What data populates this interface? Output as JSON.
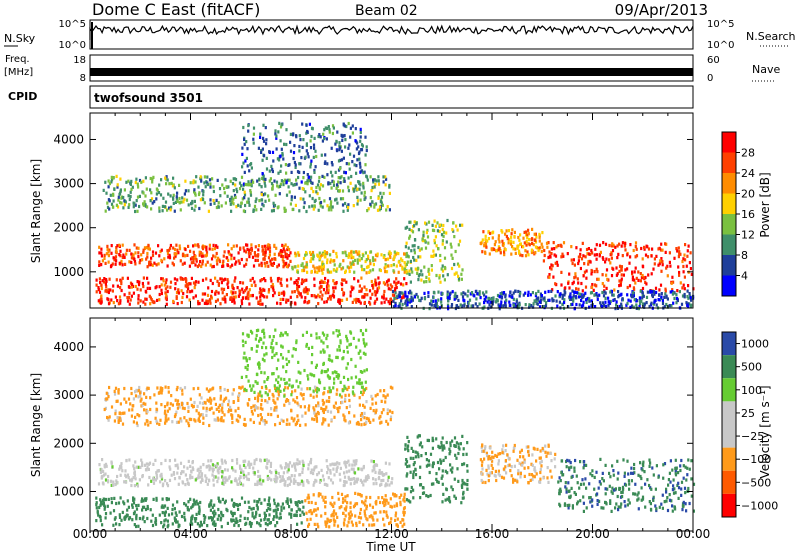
{
  "header": {
    "station": "Dome C East (fitACF)",
    "beam": "Beam 02",
    "date": "09/Apr/2013"
  },
  "summary_panels": {
    "nsky": {
      "label": "N.Sky",
      "ticks": [
        "10^5",
        "10^0"
      ]
    },
    "nsearch": {
      "label": "N.Search",
      "ticks": [
        "10^5",
        "10^0"
      ]
    },
    "freq": {
      "label_line1": "Freq.",
      "label_line2": "[MHz]",
      "ticks": [
        "18",
        "8"
      ]
    },
    "nave": {
      "label": "Nave",
      "ticks": [
        "60",
        "0"
      ]
    },
    "cpid": {
      "label": "CPID",
      "program": "twofsound 3501"
    }
  },
  "colors": {
    "power_scale": [
      "#0000ff",
      "#1f3f9a",
      "#3f8f6a",
      "#7ac040",
      "#ffd000",
      "#ff8c00",
      "#ff4000",
      "#ff0000"
    ],
    "velocity_scale": [
      "#ff0000",
      "#ff5a00",
      "#ff9a1a",
      "#c8c8c8",
      "#c8c8c8",
      "#66cc33",
      "#3a8a55",
      "#2a4aa8"
    ]
  },
  "chart_data": [
    {
      "type": "heatmap",
      "name": "power",
      "xlabel": "",
      "ylabel": "Slant Range [km]",
      "x_ticks": [
        "00:00",
        "04:00",
        "08:00",
        "12:00",
        "16:00",
        "20:00",
        "00:00"
      ],
      "xlim_hours": [
        0,
        24
      ],
      "ylim": [
        180,
        4600
      ],
      "y_ticks": [
        1000,
        2000,
        3000,
        4000
      ],
      "colorbar": {
        "label": "Power [dB]",
        "ticks": [
          "4",
          "8",
          "12",
          "16",
          "20",
          "24",
          "28"
        ],
        "range": [
          0,
          32
        ]
      },
      "regions": [
        {
          "t": [
            0.2,
            12.6
          ],
          "r": [
            300,
            900
          ],
          "level": 28
        },
        {
          "t": [
            0.3,
            8.0
          ],
          "r": [
            1150,
            1650
          ],
          "level": 26
        },
        {
          "t": [
            8.0,
            12.5
          ],
          "r": [
            1000,
            1500
          ],
          "level": 18
        },
        {
          "t": [
            12.5,
            14.8
          ],
          "r": [
            800,
            2200
          ],
          "level": 14
        },
        {
          "t": [
            15.5,
            18.0
          ],
          "r": [
            1400,
            2000
          ],
          "level": 22
        },
        {
          "t": [
            18.0,
            24.0
          ],
          "r": [
            600,
            1700
          ],
          "level": 28
        },
        {
          "t": [
            0.5,
            12.0
          ],
          "r": [
            2400,
            3200
          ],
          "level": 12
        },
        {
          "t": [
            6.0,
            11.0
          ],
          "r": [
            3000,
            4400
          ],
          "level": 8
        },
        {
          "t": [
            12.0,
            24.0
          ],
          "r": [
            200,
            600
          ],
          "level": 6
        }
      ]
    },
    {
      "type": "heatmap",
      "name": "velocity",
      "xlabel": "Time UT",
      "ylabel": "Slant Range [km]",
      "x_ticks": [
        "00:00",
        "04:00",
        "08:00",
        "12:00",
        "16:00",
        "20:00",
        "00:00"
      ],
      "xlim_hours": [
        0,
        24
      ],
      "ylim": [
        180,
        4600
      ],
      "y_ticks": [
        1000,
        2000,
        3000,
        4000
      ],
      "colorbar": {
        "label": "Velocity [m s⁻¹]",
        "ticks": [
          "1000",
          "500",
          "100",
          "25",
          "−25",
          "−100",
          "−500",
          "−1000"
        ]
      },
      "regions": [
        {
          "t": [
            0.2,
            8.5
          ],
          "r": [
            300,
            900
          ],
          "v": 300
        },
        {
          "t": [
            0.3,
            12.0
          ],
          "r": [
            1150,
            1700
          ],
          "v": 0
        },
        {
          "t": [
            8.5,
            12.5
          ],
          "r": [
            300,
            1000
          ],
          "v": -300
        },
        {
          "t": [
            12.5,
            15.0
          ],
          "r": [
            800,
            2200
          ],
          "v": 200
        },
        {
          "t": [
            15.5,
            18.5
          ],
          "r": [
            1200,
            2000
          ],
          "v": -120
        },
        {
          "t": [
            18.5,
            24.0
          ],
          "r": [
            600,
            1700
          ],
          "v": 400
        },
        {
          "t": [
            0.5,
            12.0
          ],
          "r": [
            2400,
            3200
          ],
          "v": -150
        },
        {
          "t": [
            6.0,
            11.0
          ],
          "r": [
            3000,
            4400
          ],
          "v": 60
        }
      ]
    }
  ]
}
